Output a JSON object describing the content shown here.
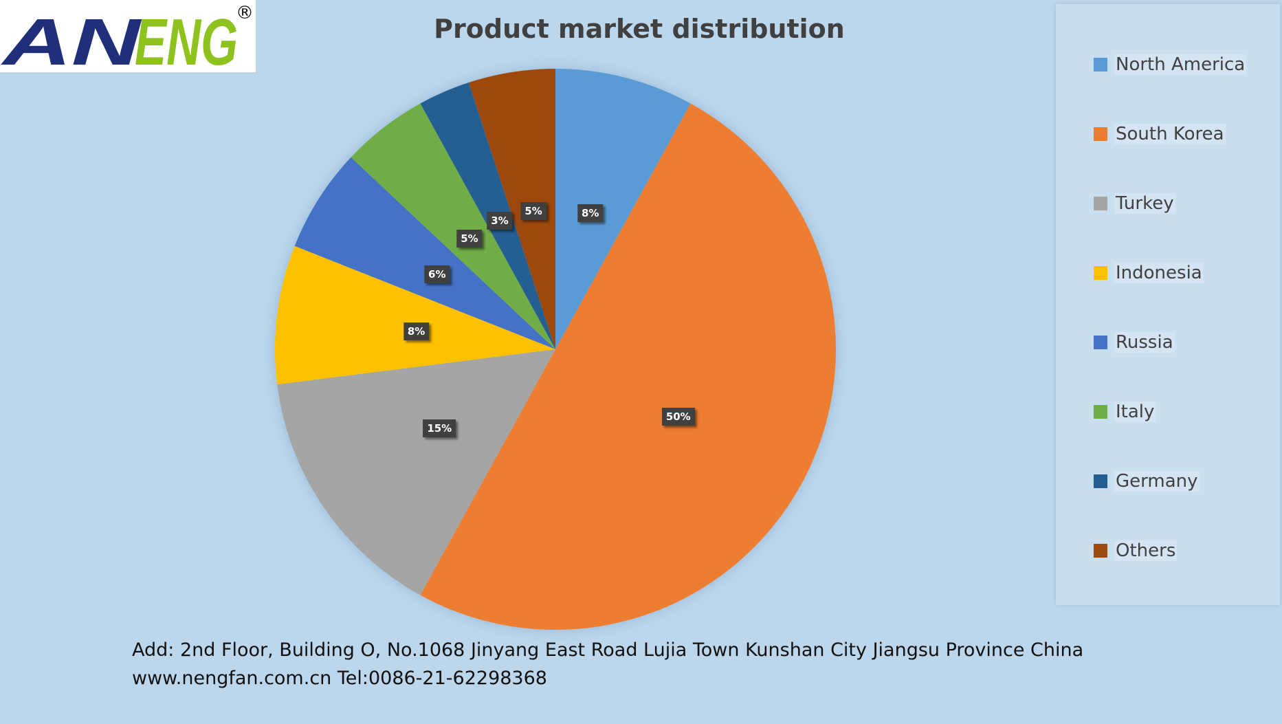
{
  "logo": {
    "text": "ANENG",
    "registered_mark": "®"
  },
  "footer": {
    "address": "Add: 2nd Floor, Building O, No.1068 Jinyang East Road Lujia Town Kunshan City Jiangsu Province China",
    "contact": "www.nengfan.com.cn  Tel:0086-21-62298368"
  },
  "chart_data": {
    "type": "pie",
    "title": "Product market distribution",
    "legend_position": "right",
    "slices": [
      {
        "label": "North America",
        "value": 8,
        "display": "8%",
        "color": "#5b9bd5"
      },
      {
        "label": "South Korea",
        "value": 50,
        "display": "50%",
        "color": "#ed7d31"
      },
      {
        "label": "Turkey",
        "value": 15,
        "display": "15%",
        "color": "#a5a5a5"
      },
      {
        "label": "Indonesia",
        "value": 8,
        "display": "8%",
        "color": "#ffc000"
      },
      {
        "label": "Russia",
        "value": 6,
        "display": "6%",
        "color": "#4472c4"
      },
      {
        "label": "Italy",
        "value": 5,
        "display": "5%",
        "color": "#70ad47"
      },
      {
        "label": "Germany",
        "value": 3,
        "display": "3%",
        "color": "#255e91"
      },
      {
        "label": "Others",
        "value": 5,
        "display": "5%",
        "color": "#9e480e"
      }
    ]
  }
}
